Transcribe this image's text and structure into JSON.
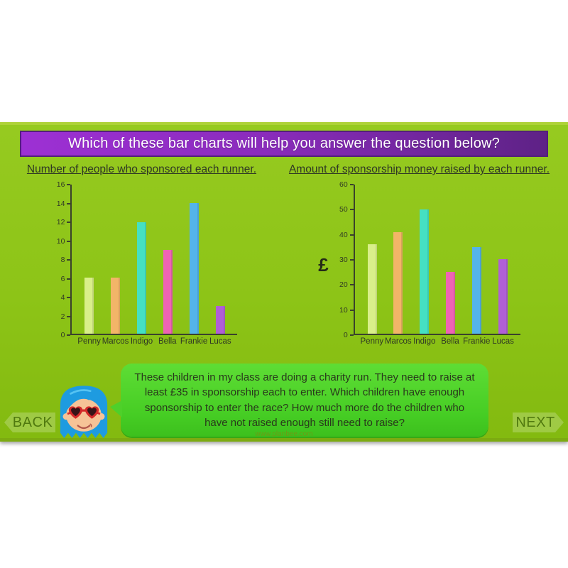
{
  "banner": {
    "text": "Which of these bar charts will help you answer the question below?"
  },
  "chart_data": [
    {
      "type": "bar",
      "title": "Number of people who sponsored each runner.",
      "categories": [
        "Penny",
        "Marcos",
        "Indigo",
        "Bella",
        "Frankie",
        "Lucas"
      ],
      "values": [
        6,
        6,
        12,
        9,
        14,
        3
      ],
      "bar_colors": [
        "#d9ef8a",
        "#f2b568",
        "#45e0c2",
        "#ee64b4",
        "#54b4ea",
        "#b05fd6"
      ],
      "xlabel": "",
      "ylabel": "",
      "ylim": [
        0,
        16
      ],
      "ytick_step": 2,
      "grid": "off",
      "legend": "none"
    },
    {
      "type": "bar",
      "title": "Amount of sponsorship money raised by each runner.",
      "categories": [
        "Penny",
        "Marcos",
        "Indigo",
        "Bella",
        "Frankie",
        "Lucas"
      ],
      "values": [
        36,
        41,
        50,
        25,
        35,
        30
      ],
      "bar_colors": [
        "#d9ef8a",
        "#f2b568",
        "#45e0c2",
        "#ee64b4",
        "#54b4ea",
        "#b05fd6"
      ],
      "xlabel": "",
      "ylabel": "£",
      "ylim": [
        0,
        60
      ],
      "ytick_step": 10,
      "grid": "off",
      "legend": "none"
    }
  ],
  "speech_bubble": {
    "text": "These children in my class are doing a charity run. They need to raise at least £35 in sponsorship each to enter. Which children have enough sponsorship to enter the race? How much more do the children who have not raised enough still need to raise?"
  },
  "nav": {
    "back_label": "BACK",
    "next_label": "NEXT"
  },
  "footer": {
    "url": "www.planbee.com"
  },
  "colors": {
    "slide_green": "#8dc417",
    "banner_purple_left": "#9d30d4",
    "banner_purple_right": "#5e2286",
    "bubble_green": "#46cd24",
    "axis_text": "#313a25",
    "title_text": "#ffffff"
  }
}
